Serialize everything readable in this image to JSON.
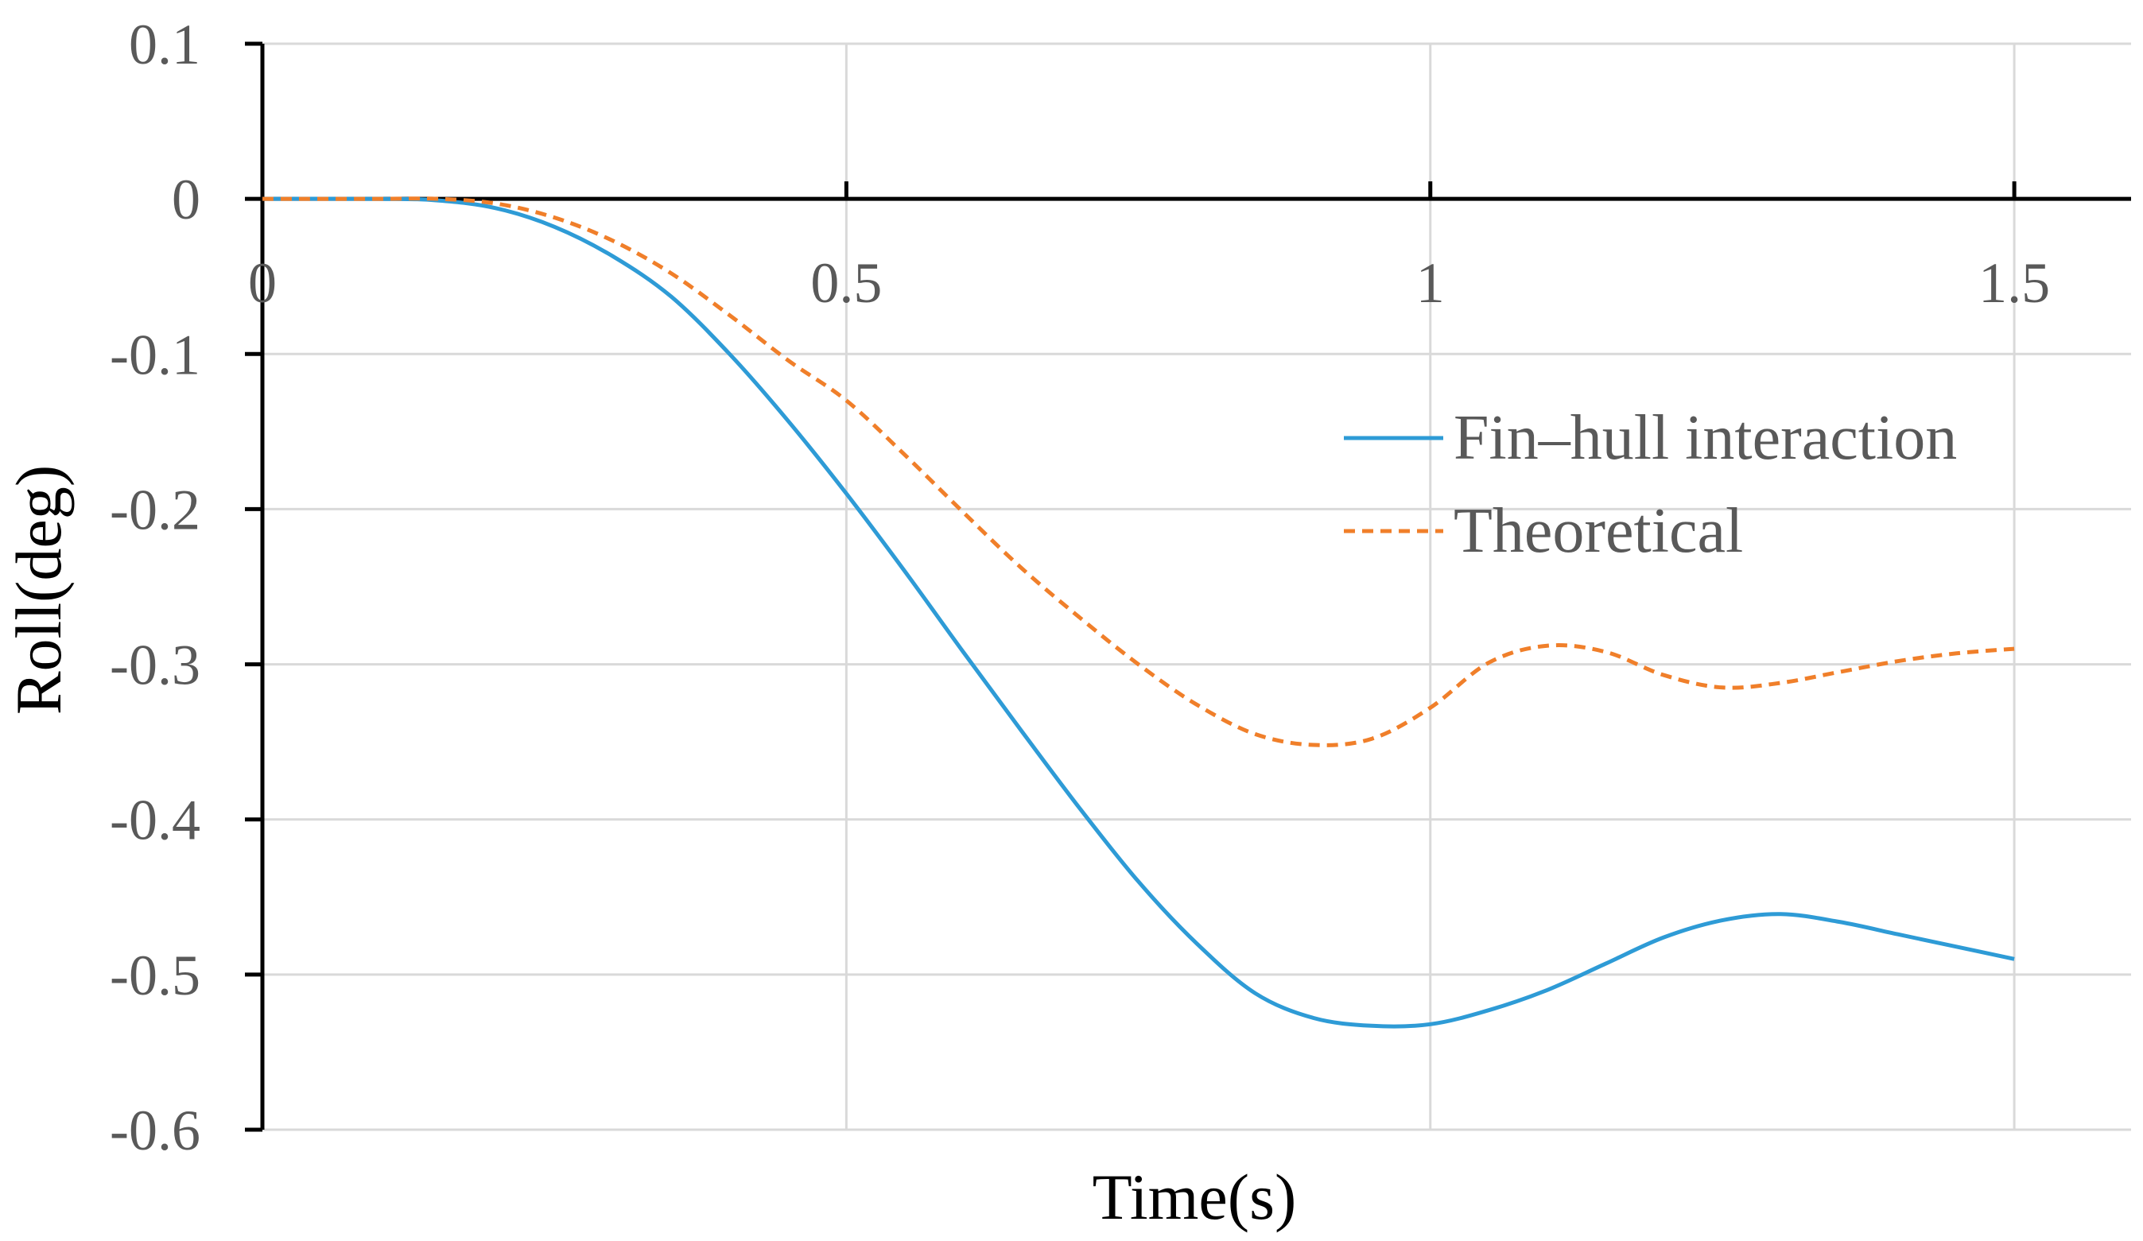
{
  "chart_data": {
    "type": "line",
    "title": "",
    "xlabel": "Time(s)",
    "ylabel": "Roll(deg)",
    "xlim": [
      0,
      1.6
    ],
    "ylim": [
      -0.6,
      0.1
    ],
    "x_ticks": [
      0,
      0.5,
      1,
      1.5
    ],
    "x_tick_labels": [
      "0",
      "0.5",
      "1",
      "1.5"
    ],
    "y_ticks": [
      0.1,
      0,
      -0.1,
      -0.2,
      -0.3,
      -0.4,
      -0.5,
      -0.6
    ],
    "y_tick_labels": [
      "0.1",
      "0",
      "-0.1",
      "-0.2",
      "-0.3",
      "-0.4",
      "-0.5",
      "-0.6"
    ],
    "grid": true,
    "legend_position": "right",
    "series": [
      {
        "name": "Fin–hull interaction",
        "color": "#2E9BD6",
        "style": "solid",
        "x": [
          0,
          0.1,
          0.15,
          0.2,
          0.25,
          0.3,
          0.35,
          0.4,
          0.45,
          0.5,
          0.55,
          0.6,
          0.65,
          0.7,
          0.75,
          0.8,
          0.85,
          0.9,
          0.95,
          1.0,
          1.05,
          1.1,
          1.15,
          1.2,
          1.25,
          1.3,
          1.35,
          1.4,
          1.45,
          1.5
        ],
        "y": [
          0,
          0,
          -0.001,
          -0.006,
          -0.018,
          -0.037,
          -0.063,
          -0.1,
          -0.143,
          -0.19,
          -0.24,
          -0.292,
          -0.343,
          -0.393,
          -0.44,
          -0.48,
          -0.512,
          -0.528,
          -0.533,
          -0.532,
          -0.523,
          -0.51,
          -0.493,
          -0.476,
          -0.465,
          -0.461,
          -0.466,
          -0.474,
          -0.482,
          -0.49
        ]
      },
      {
        "name": "Theoretical",
        "color": "#F07F2A",
        "style": "dashed",
        "x": [
          0,
          0.1,
          0.15,
          0.2,
          0.25,
          0.3,
          0.35,
          0.4,
          0.45,
          0.5,
          0.55,
          0.6,
          0.65,
          0.7,
          0.75,
          0.8,
          0.85,
          0.9,
          0.95,
          1.0,
          1.05,
          1.1,
          1.15,
          1.2,
          1.25,
          1.3,
          1.35,
          1.4,
          1.45,
          1.5
        ],
        "y": [
          0,
          0,
          0,
          -0.003,
          -0.012,
          -0.027,
          -0.048,
          -0.075,
          -0.104,
          -0.13,
          -0.165,
          -0.202,
          -0.238,
          -0.27,
          -0.3,
          -0.326,
          -0.345,
          -0.352,
          -0.348,
          -0.328,
          -0.299,
          -0.288,
          -0.292,
          -0.307,
          -0.315,
          -0.312,
          -0.305,
          -0.298,
          -0.293,
          -0.29
        ]
      }
    ]
  }
}
